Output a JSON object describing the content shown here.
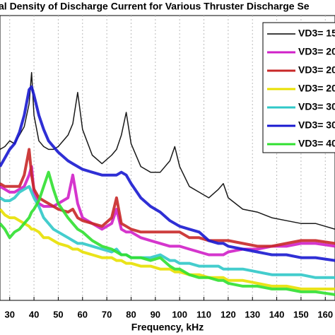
{
  "chart_data": {
    "type": "line",
    "title": "al Density of Discharge Current for Various Thruster Discharge Se",
    "x_label": "Frequency, kHz",
    "x": [
      26,
      28,
      30,
      32,
      34,
      36,
      38,
      39,
      40,
      42,
      44,
      46,
      48,
      50,
      54,
      56,
      58,
      60,
      64,
      68,
      72,
      74,
      76,
      78,
      80,
      84,
      88,
      92,
      96,
      98,
      100,
      104,
      108,
      112,
      116,
      118,
      120,
      126,
      132,
      138,
      144,
      150,
      156,
      164
    ],
    "xlim": [
      26,
      164
    ],
    "xticks": [
      30,
      40,
      50,
      60,
      70,
      80,
      90,
      100,
      110,
      120,
      130,
      140,
      150,
      160
    ],
    "ylim": [
      0,
      100
    ],
    "grid": true,
    "legend": "upper right",
    "series": [
      {
        "name": "VD3= 15",
        "color": "#000000",
        "values": [
          53,
          54,
          56,
          55,
          58,
          61,
          69,
          80,
          65,
          56,
          54,
          53,
          53,
          54,
          58,
          62,
          73,
          60,
          51,
          48,
          51,
          53,
          58,
          66,
          55,
          47,
          45,
          45,
          49,
          54,
          47,
          40,
          38,
          36,
          39,
          41,
          36,
          32,
          31,
          29,
          28,
          27,
          27,
          25
        ]
      },
      {
        "name": "VD3= 20",
        "color": "#d020c8",
        "values": [
          40,
          39,
          38,
          38,
          39,
          40,
          44,
          47,
          38,
          34,
          33,
          33,
          33,
          34,
          36,
          44,
          34,
          29,
          27,
          25,
          27,
          32,
          25,
          24,
          24,
          22,
          21,
          20,
          19,
          19,
          19,
          18,
          17,
          16,
          16,
          16,
          17,
          18,
          18,
          19,
          19,
          20,
          20,
          19
        ]
      },
      {
        "name": "VD3= 20",
        "color": "#c82828",
        "values": [
          41,
          40,
          40,
          40,
          40,
          44,
          53,
          44,
          39,
          36,
          35,
          34,
          33,
          32,
          31,
          32,
          29,
          28,
          27,
          26,
          29,
          36,
          27,
          26,
          25,
          24,
          24,
          24,
          24,
          24,
          24,
          22,
          22,
          21,
          21,
          21,
          21,
          20,
          19,
          19,
          20,
          21,
          21,
          20
        ]
      },
      {
        "name": "VD3= 20",
        "color": "#e8e000",
        "values": [
          32,
          30,
          29,
          29,
          28,
          27,
          26,
          25,
          25,
          24,
          22,
          22,
          21,
          20,
          19,
          18,
          18,
          17,
          16,
          15,
          15,
          14,
          14,
          13,
          13,
          12,
          12,
          11,
          11,
          10,
          10,
          9,
          9,
          8,
          8,
          8,
          7,
          7,
          6,
          5,
          5,
          4,
          4,
          4
        ]
      },
      {
        "name": "VD3= 30",
        "color": "#30c8c8",
        "values": [
          36,
          35,
          35,
          36,
          38,
          39,
          40,
          38,
          36,
          33,
          29,
          27,
          25,
          24,
          22,
          21,
          20,
          20,
          19,
          18,
          17,
          18,
          16,
          16,
          15,
          15,
          15,
          16,
          14,
          14,
          13,
          13,
          12,
          12,
          12,
          11,
          11,
          11,
          10,
          9,
          9,
          9,
          8,
          8
        ]
      },
      {
        "name": "VD3= 30",
        "color": "#1818d0",
        "values": [
          47,
          50,
          53,
          55,
          59,
          65,
          74,
          75,
          72,
          65,
          60,
          56,
          54,
          52,
          49,
          48,
          47,
          46,
          45,
          44,
          44,
          44,
          45,
          44,
          41,
          36,
          33,
          31,
          28,
          27,
          26,
          25,
          24,
          21,
          20,
          20,
          19,
          18,
          17,
          16,
          16,
          15,
          15,
          14
        ]
      },
      {
        "name": "VD3= 40",
        "color": "#30e030",
        "values": [
          27,
          25,
          22,
          24,
          25,
          27,
          29,
          31,
          32,
          35,
          40,
          45,
          39,
          34,
          29,
          27,
          25,
          24,
          21,
          19,
          18,
          17,
          16,
          16,
          15,
          15,
          14,
          15,
          12,
          11,
          11,
          9,
          8,
          8,
          7,
          7,
          6,
          5,
          5,
          4,
          4,
          3,
          3,
          2
        ]
      }
    ]
  }
}
